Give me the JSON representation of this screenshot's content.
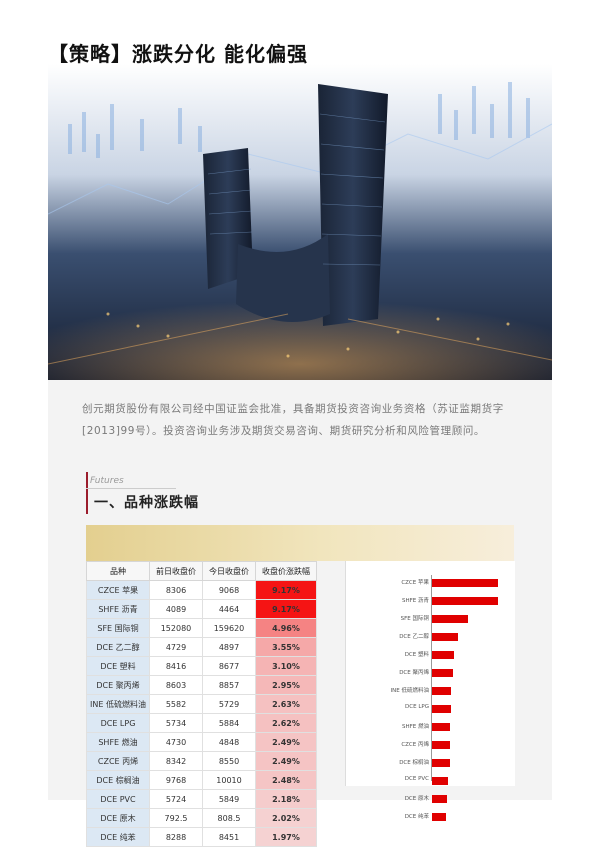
{
  "page": {
    "title": "【策略】涨跌分化 能化偏强",
    "intro": "创元期货股份有限公司经中国证监会批准，具备期货投资咨询业务资格（苏证监期货字[2013]99号）。投资咨询业务涉及期货交易咨询、期货研究分析和风险管理顾问。",
    "section_tag": "Futures",
    "section_title": "一、品种涨跌幅"
  },
  "colors": {
    "accent": "#9b1c2c",
    "bar": "#e00000",
    "name_cell": "#dce8f4",
    "gold": "#e3cf8f"
  },
  "table": {
    "headers": [
      "品种",
      "前日收盘价",
      "今日收盘价",
      "收盘价涨跌幅"
    ],
    "rows": [
      {
        "name": "CZCE 苹果",
        "prev": "8306",
        "today": "9068",
        "change": "9.17%"
      },
      {
        "name": "SHFE 沥青",
        "prev": "4089",
        "today": "4464",
        "change": "9.17%"
      },
      {
        "name": "SFE 国际铜",
        "prev": "152080",
        "today": "159620",
        "change": "4.96%"
      },
      {
        "name": "DCE 乙二醇",
        "prev": "4729",
        "today": "4897",
        "change": "3.55%"
      },
      {
        "name": "DCE 塑料",
        "prev": "8416",
        "today": "8677",
        "change": "3.10%"
      },
      {
        "name": "DCE 聚丙烯",
        "prev": "8603",
        "today": "8857",
        "change": "2.95%"
      },
      {
        "name": "INE 低硫燃料油",
        "prev": "5582",
        "today": "5729",
        "change": "2.63%"
      },
      {
        "name": "DCE LPG",
        "prev": "5734",
        "today": "5884",
        "change": "2.62%"
      },
      {
        "name": "SHFE 燃油",
        "prev": "4730",
        "today": "4848",
        "change": "2.49%"
      },
      {
        "name": "CZCE 丙烯",
        "prev": "8342",
        "today": "8550",
        "change": "2.49%"
      },
      {
        "name": "DCE 棕榈油",
        "prev": "9768",
        "today": "10010",
        "change": "2.48%"
      },
      {
        "name": "DCE PVC",
        "prev": "5724",
        "today": "5849",
        "change": "2.18%"
      },
      {
        "name": "DCE 原木",
        "prev": "792.5",
        "today": "808.5",
        "change": "2.02%"
      },
      {
        "name": "DCE 纯苯",
        "prev": "8288",
        "today": "8451",
        "change": "1.97%"
      }
    ]
  },
  "chart_data": {
    "type": "bar",
    "orientation": "horizontal",
    "categories": [
      "CZCE 苹果",
      "SHFE 沥青",
      "SFE 国际铜",
      "DCE 乙二醇",
      "DCE 塑料",
      "DCE 聚丙烯",
      "INE 低硫燃料油",
      "DCE LPG",
      "SHFE 燃油",
      "CZCE 丙烯",
      "DCE 棕榈油",
      "DCE PVC",
      "DCE 原木",
      "DCE 纯苯"
    ],
    "values": [
      9.17,
      9.17,
      4.96,
      3.55,
      3.1,
      2.95,
      2.63,
      2.62,
      2.49,
      2.49,
      2.48,
      2.18,
      2.02,
      1.97
    ],
    "xlim": [
      0,
      10
    ],
    "grid": false,
    "legend": "none"
  }
}
